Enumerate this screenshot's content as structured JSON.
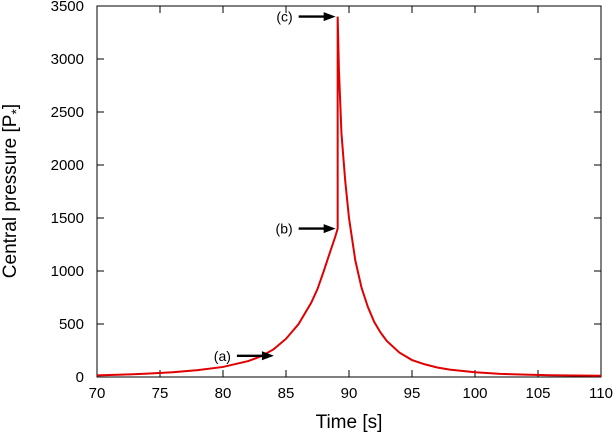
{
  "chart_data": {
    "type": "line",
    "xlabel": "Time [s]",
    "ylabel": "Central pressure [P",
    "ylabel_subscript": "*",
    "ylabel_close": "]",
    "xlim": [
      70,
      110
    ],
    "ylim": [
      0,
      3500
    ],
    "xticks": [
      70,
      75,
      80,
      85,
      90,
      95,
      100,
      105,
      110
    ],
    "yticks": [
      0,
      500,
      1000,
      1500,
      2000,
      2500,
      3000,
      3500
    ],
    "grid": false,
    "line_color": "#e00000",
    "series": [
      {
        "x": [
          70,
          72,
          74,
          76,
          78,
          80,
          82,
          83,
          84,
          85,
          86,
          87,
          87.5,
          88,
          88.5,
          88.9,
          89.1,
          89.1,
          89.2,
          89.4,
          89.7,
          90,
          90.5,
          91,
          91.5,
          92,
          92.5,
          93,
          94,
          95,
          96,
          97,
          98,
          100,
          102,
          104,
          106,
          108,
          110
        ],
        "y": [
          15,
          22,
          32,
          45,
          65,
          95,
          150,
          195,
          260,
          360,
          500,
          700,
          830,
          1000,
          1180,
          1320,
          1400,
          3400,
          2900,
          2300,
          1850,
          1500,
          1100,
          840,
          660,
          520,
          420,
          340,
          230,
          160,
          120,
          90,
          70,
          45,
          30,
          22,
          17,
          14,
          12
        ]
      }
    ],
    "annotations": [
      {
        "label": "(a)",
        "x": 84.2,
        "y": 200
      },
      {
        "label": "(b)",
        "x": 89.1,
        "y": 1400
      },
      {
        "label": "(c)",
        "x": 89.1,
        "y": 3400
      }
    ]
  }
}
